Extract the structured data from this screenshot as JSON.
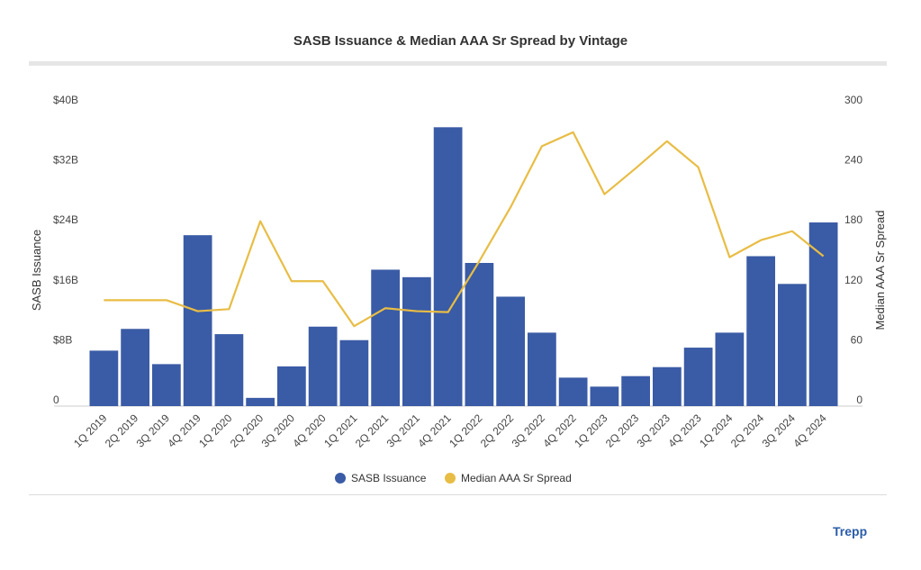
{
  "chart_data": {
    "type": "bar",
    "title": "SASB Issuance & Median AAA Sr Spread by Vintage",
    "categories": [
      "1Q 2019",
      "2Q 2019",
      "3Q 2019",
      "4Q 2019",
      "1Q 2020",
      "2Q 2020",
      "3Q 2020",
      "4Q 2020",
      "1Q 2021",
      "2Q 2021",
      "3Q 2021",
      "4Q 2021",
      "1Q 2022",
      "2Q 2022",
      "3Q 2022",
      "4Q 2022",
      "1Q 2023",
      "2Q 2023",
      "3Q 2023",
      "4Q 2023",
      "1Q 2024",
      "2Q 2024",
      "3Q 2024",
      "4Q 2024"
    ],
    "series": [
      {
        "name": "SASB Issuance",
        "type": "bar",
        "axis": "left",
        "unit": "$B",
        "color": "#3a5ba5",
        "values": [
          7.4,
          10.3,
          5.6,
          22.8,
          9.6,
          1.1,
          5.3,
          10.6,
          8.8,
          18.2,
          17.2,
          37.2,
          19.1,
          14.6,
          9.8,
          3.8,
          2.6,
          4.0,
          5.2,
          7.8,
          9.8,
          20.0,
          16.3,
          24.5
        ]
      },
      {
        "name": "Median AAA Sr Spread",
        "type": "line",
        "axis": "right",
        "color": "#e8bd45",
        "values": [
          106,
          106,
          106,
          95,
          97,
          185,
          125,
          125,
          80,
          98,
          95,
          94,
          145,
          199,
          260,
          274,
          212,
          238,
          265,
          239,
          149,
          166,
          175,
          150
        ]
      }
    ],
    "ylabel": "SASB Issuance",
    "ylabel_right": "Median AAA Sr Spread",
    "ylim": [
      0,
      40
    ],
    "ylim_right": [
      0,
      300
    ],
    "yticks": [
      "0",
      "$8B",
      "$16B",
      "$24B",
      "$32B",
      "$40B"
    ],
    "yticks_right": [
      "0",
      "60",
      "120",
      "180",
      "240",
      "300"
    ],
    "grid": false,
    "legend": "bottom-center"
  },
  "branding": {
    "logo": "Trepp"
  }
}
